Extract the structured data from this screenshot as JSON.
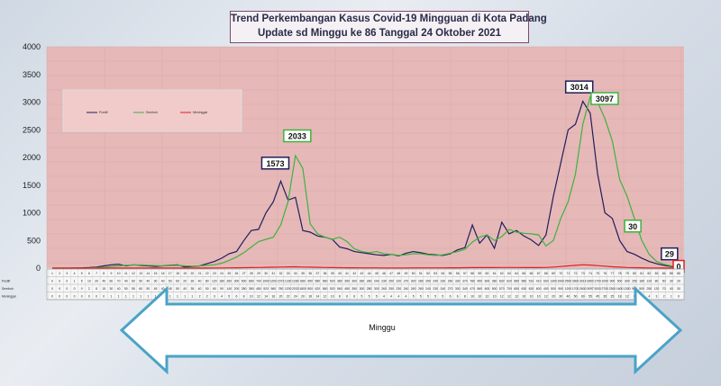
{
  "title": {
    "line1": "Trend Perkembangan Kasus Covid-19  Mingguan di Kota Padang",
    "line2": "Update sd Minggu  ke 86 Tanggal 24 Oktober 2021"
  },
  "arrow_label": "Minggu",
  "table_row_labels": [
    "Positif",
    "Sembuh",
    "Meninggal"
  ],
  "colors": {
    "plot_bg": "#e6b8b8",
    "positif": "#1f1f5a",
    "sembuh": "#3db33d",
    "meninggal": "#e02020",
    "arrow_border": "#4aa3c7"
  },
  "chart_data": {
    "type": "line",
    "title": "Trend Perkembangan Kasus Covid-19  Mingguan di Kota Padang",
    "subtitle": "Update sd Minggu  ke 86 Tanggal 24 Oktober 2021",
    "xlabel": "Minggu",
    "ylabel": "",
    "ylim": [
      0,
      4000
    ],
    "yticks": [
      0,
      500,
      1000,
      1500,
      2000,
      2500,
      3000,
      3500,
      4000
    ],
    "x": [
      1,
      2,
      3,
      4,
      5,
      6,
      7,
      8,
      9,
      10,
      11,
      12,
      13,
      14,
      15,
      16,
      17,
      18,
      19,
      20,
      21,
      22,
      23,
      24,
      25,
      26,
      27,
      28,
      29,
      30,
      31,
      32,
      33,
      34,
      35,
      36,
      37,
      38,
      39,
      40,
      41,
      42,
      43,
      44,
      45,
      46,
      47,
      48,
      49,
      50,
      51,
      52,
      53,
      54,
      55,
      56,
      57,
      58,
      59,
      60,
      61,
      62,
      63,
      64,
      65,
      66,
      67,
      68,
      69,
      70,
      71,
      72,
      73,
      74,
      75,
      76,
      77,
      78,
      79,
      80,
      81,
      82,
      83,
      84,
      85,
      86
    ],
    "grid": true,
    "legend_position": "top-left",
    "series": [
      {
        "name": "Positif",
        "color": "#1f1f5a",
        "values": [
          0,
          0,
          0,
          1,
          5,
          10,
          20,
          40,
          60,
          70,
          40,
          60,
          50,
          40,
          30,
          40,
          50,
          60,
          20,
          30,
          40,
          80,
          120,
          180,
          260,
          300,
          500,
          680,
          700,
          1000,
          1200,
          1573,
          1230,
          1280,
          680,
          650,
          580,
          560,
          520,
          380,
          350,
          300,
          280,
          260,
          240,
          230,
          250,
          220,
          270,
          300,
          280,
          250,
          240,
          230,
          260,
          330,
          370,
          780,
          450,
          600,
          360,
          830,
          620,
          680,
          580,
          510,
          410,
          600,
          1300,
          1900,
          2500,
          2600,
          3014,
          2800,
          1700,
          1000,
          900,
          500,
          300,
          250,
          180,
          120,
          80,
          50,
          30,
          29
        ]
      },
      {
        "name": "Sembuh",
        "color": "#3db33d",
        "values": [
          0,
          0,
          0,
          0,
          0,
          2,
          8,
          15,
          30,
          40,
          50,
          55,
          60,
          50,
          45,
          40,
          45,
          50,
          40,
          35,
          40,
          50,
          60,
          90,
          140,
          200,
          280,
          380,
          480,
          520,
          560,
          780,
          1200,
          2033,
          1800,
          800,
          620,
          560,
          520,
          560,
          480,
          350,
          300,
          280,
          300,
          260,
          250,
          230,
          240,
          260,
          260,
          240,
          230,
          240,
          270,
          300,
          340,
          470,
          560,
          600,
          500,
          570,
          700,
          650,
          630,
          620,
          600,
          400,
          500,
          900,
          1200,
          1700,
          2600,
          3097,
          3000,
          2700,
          2300,
          1600,
          1300,
          900,
          500,
          250,
          120,
          70,
          40,
          30
        ]
      },
      {
        "name": "Meninggal",
        "color": "#e02020",
        "values": [
          0,
          0,
          0,
          0,
          0,
          0,
          0,
          0,
          1,
          1,
          1,
          1,
          1,
          1,
          1,
          1,
          1,
          1,
          1,
          1,
          2,
          2,
          3,
          4,
          5,
          6,
          8,
          10,
          12,
          14,
          16,
          20,
          22,
          24,
          20,
          18,
          14,
          12,
          10,
          8,
          6,
          6,
          5,
          5,
          5,
          4,
          4,
          4,
          4,
          5,
          5,
          5,
          5,
          5,
          6,
          6,
          8,
          10,
          10,
          12,
          10,
          12,
          12,
          12,
          10,
          10,
          10,
          12,
          20,
          30,
          40,
          50,
          60,
          55,
          45,
          35,
          25,
          18,
          12,
          8,
          6,
          4,
          3,
          2,
          1,
          0
        ]
      }
    ],
    "annotations": [
      {
        "text": "1573",
        "series": "Positif",
        "x": 32
      },
      {
        "text": "2033",
        "series": "Sembuh",
        "x": 34
      },
      {
        "text": "3014",
        "series": "Positif",
        "x": 73
      },
      {
        "text": "3097",
        "series": "Sembuh",
        "x": 74
      },
      {
        "text": "30",
        "series": "Sembuh",
        "x": 81
      },
      {
        "text": "29",
        "series": "Positif",
        "x": 85
      },
      {
        "text": "0",
        "series": "Meninggal",
        "x": 86
      }
    ]
  }
}
